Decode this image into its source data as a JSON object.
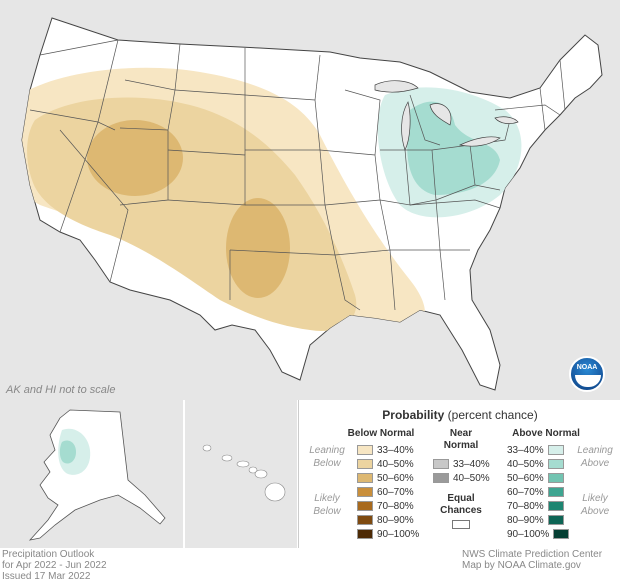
{
  "map": {
    "scale_note": "AK and HI not to scale",
    "colors": {
      "land": "#ffffff",
      "background": "#e6e6e6",
      "border": "#444444",
      "below_33_40": "#f7e6c3",
      "below_40_50": "#ecd4a0",
      "below_50_60": "#ddb872",
      "above_33_40": "#d6efea",
      "above_40_50": "#a5dcd0"
    }
  },
  "logo": {
    "text": "NOAA"
  },
  "legend": {
    "title_bold": "Probability",
    "title_rest": " (percent chance)",
    "below_head": "Below Normal",
    "near_head_1": "Near",
    "near_head_2": "Normal",
    "above_head": "Above Normal",
    "leaning_below_1": "Leaning",
    "leaning_below_2": "Below",
    "likely_below_1": "Likely",
    "likely_below_2": "Below",
    "leaning_above_1": "Leaning",
    "leaning_above_2": "Above",
    "likely_above_1": "Likely",
    "likely_above_2": "Above",
    "equal_1": "Equal",
    "equal_2": "Chances",
    "below": [
      {
        "label": "33–40%",
        "color": "#f7e6c3"
      },
      {
        "label": "40–50%",
        "color": "#ecd4a0"
      },
      {
        "label": "50–60%",
        "color": "#ddb872"
      },
      {
        "label": "60–70%",
        "color": "#c98f3b"
      },
      {
        "label": "70–80%",
        "color": "#a86a1e"
      },
      {
        "label": "80–90%",
        "color": "#7e4a10"
      },
      {
        "label": "90–100%",
        "color": "#4d2a05"
      }
    ],
    "near": [
      {
        "label": "33–40%",
        "color": "#c8c8c8"
      },
      {
        "label": "40–50%",
        "color": "#9a9a9a"
      }
    ],
    "above": [
      {
        "label": "33–40%",
        "color": "#d6efea"
      },
      {
        "label": "40–50%",
        "color": "#a5dcd0"
      },
      {
        "label": "50–60%",
        "color": "#72c4b1"
      },
      {
        "label": "60–70%",
        "color": "#3ea591"
      },
      {
        "label": "70–80%",
        "color": "#1d8571"
      },
      {
        "label": "80–90%",
        "color": "#0e6555"
      },
      {
        "label": "90–100%",
        "color": "#053f33"
      }
    ]
  },
  "footer": {
    "left_1": "Precipitation Outlook",
    "left_2": "for Apr 2022 - Jun 2022",
    "left_3": "Issued 17 Mar 2022",
    "right_1": "NWS Climate Prediction Center",
    "right_2": "Map by NOAA Climate.gov"
  }
}
